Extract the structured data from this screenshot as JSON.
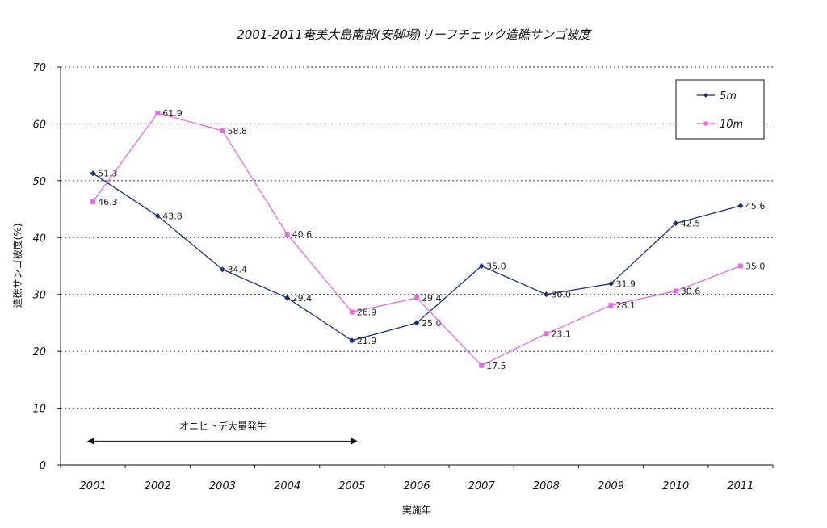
{
  "chart_data": {
    "type": "line",
    "title": "2001-2011奄美大島南部(安脚場)リーフチェック造礁サンゴ被度",
    "xlabel": "実施年",
    "ylabel": "造礁サンゴ被度(%)",
    "categories": [
      "2001",
      "2002",
      "2003",
      "2004",
      "2005",
      "2006",
      "2007",
      "2008",
      "2009",
      "2010",
      "2011"
    ],
    "ylim": [
      0,
      70
    ],
    "yticks": [
      "0",
      "10",
      "20",
      "30",
      "40",
      "50",
      "60",
      "70"
    ],
    "grid": "horizontal-dotted",
    "legend_position": "top-right",
    "series": [
      {
        "name": "5m",
        "color": "#1f2f7a",
        "marker": "diamond",
        "values": [
          51.3,
          43.8,
          34.4,
          29.4,
          21.9,
          25.0,
          35.0,
          30.0,
          31.9,
          42.5,
          45.6
        ],
        "labels": [
          "51.3",
          "43.8",
          "34.4",
          "29.4",
          "21.9",
          "25.0",
          "35.0",
          "30.0",
          "31.9",
          "42.5",
          "45.6"
        ]
      },
      {
        "name": "10m",
        "color": "#e36ee3",
        "marker": "square",
        "values": [
          46.3,
          61.9,
          58.8,
          40.6,
          26.9,
          29.4,
          17.5,
          23.1,
          28.1,
          30.6,
          35.0
        ],
        "labels": [
          "46.3",
          "61.9",
          "58.8",
          "40.6",
          "26.9",
          "29.4",
          "17.5",
          "23.1",
          "28.1",
          "30.6",
          "35.0"
        ]
      }
    ],
    "annotation": {
      "text": "オニヒトデ大量発生",
      "from": "2001",
      "to": "2005",
      "y": 4.2
    }
  }
}
